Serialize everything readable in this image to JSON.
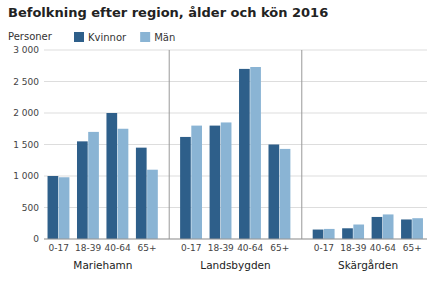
{
  "chart_data": {
    "type": "bar",
    "title": "Befolkning efter region, ålder och kön 2016",
    "y_label": "Personer",
    "categories": [
      "0-17",
      "18-39",
      "40-64",
      "65+",
      "0-17",
      "18-39",
      "40-64",
      "65+",
      "0-17",
      "18-39",
      "40-64",
      "65+"
    ],
    "category_groups": [
      "Mariehamn",
      "Mariehamn",
      "Mariehamn",
      "Mariehamn",
      "Landsbygden",
      "Landsbygden",
      "Landsbygden",
      "Landsbygden",
      "Skärgården",
      "Skärgården",
      "Skärgården",
      "Skärgården"
    ],
    "series": [
      {
        "name": "Kvinnor",
        "color": "#2E5F8A",
        "values": [
          1000,
          1550,
          2000,
          1450,
          1620,
          1800,
          2700,
          1500,
          150,
          170,
          350,
          310
        ]
      },
      {
        "name": "Män",
        "color": "#8AB4D4",
        "values": [
          980,
          1700,
          1750,
          1100,
          1800,
          1850,
          2730,
          1430,
          160,
          230,
          390,
          330
        ]
      }
    ],
    "ylim": [
      0,
      3000
    ],
    "yticks": [
      0,
      500,
      {
        "value": 1000,
        "label": "1 000"
      },
      {
        "value": 1500,
        "label": "1 500"
      },
      {
        "value": 2000,
        "label": "2 000"
      },
      {
        "value": 2500,
        "label": "2 500"
      },
      {
        "value": 3000,
        "label": "3 000"
      }
    ],
    "grid": true,
    "legend": "upper left"
  }
}
